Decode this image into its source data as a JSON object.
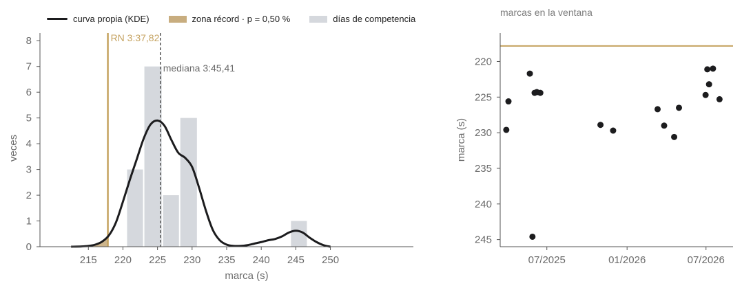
{
  "legend": {
    "kde": "curva propia (KDE)",
    "record_zone": "zona récord · p = 0,50 %",
    "competition_days": "días de competencia"
  },
  "colors": {
    "kde": "#1c1c1e",
    "record": "#c5a25f",
    "hist": "#d5d8dd",
    "median": "#555555",
    "points": "#1c1c1e"
  },
  "chart_data": [
    {
      "type": "bar",
      "subtype": "histogram_with_kde",
      "title": "",
      "xlabel": "marca (s)",
      "ylabel": "veces",
      "xlim": [
        208,
        262
      ],
      "ylim": [
        0,
        8.3
      ],
      "xticks": [
        215,
        220,
        225,
        230,
        235,
        240,
        245,
        250
      ],
      "yticks": [
        0,
        1,
        2,
        3,
        4,
        5,
        6,
        7,
        8
      ],
      "bins": [
        {
          "x0": 220.5,
          "x1": 223.0,
          "count": 3
        },
        {
          "x0": 223.0,
          "x1": 225.7,
          "count": 7
        },
        {
          "x0": 225.7,
          "x1": 228.2,
          "count": 2
        },
        {
          "x0": 228.2,
          "x1": 230.8,
          "count": 5
        },
        {
          "x0": 244.2,
          "x1": 246.7,
          "count": 1
        }
      ],
      "kde": {
        "name": "curva propia (KDE)",
        "x": [
          212.5,
          214,
          215,
          216,
          217,
          218,
          219,
          220,
          221,
          222,
          223,
          224,
          225,
          226,
          227,
          228,
          229,
          230,
          231,
          232,
          233,
          234,
          235,
          236,
          237,
          238,
          239,
          240,
          241,
          242,
          243,
          244,
          245,
          246,
          247,
          248,
          249,
          250
        ],
        "y": [
          0,
          0.01,
          0.03,
          0.08,
          0.2,
          0.45,
          0.95,
          1.75,
          2.6,
          3.4,
          4.2,
          4.75,
          4.9,
          4.7,
          4.15,
          3.65,
          3.45,
          3.1,
          2.3,
          1.4,
          0.65,
          0.25,
          0.08,
          0.03,
          0.03,
          0.06,
          0.12,
          0.18,
          0.25,
          0.3,
          0.4,
          0.55,
          0.62,
          0.55,
          0.35,
          0.18,
          0.06,
          0.0
        ]
      },
      "record": {
        "label": "RN 3:37,82",
        "value": 217.82,
        "zone_from": 217.0,
        "zone_name": "zona récord · p = 0,50 %"
      },
      "median": {
        "label": "mediana 3:45,41",
        "value": 225.41
      }
    },
    {
      "type": "scatter",
      "title": "marcas en la ventana",
      "xlabel": "",
      "ylabel": "marca (s)",
      "y_inverted": true,
      "ylim": [
        246,
        216
      ],
      "yticks": [
        220,
        225,
        230,
        235,
        240,
        245
      ],
      "xlim": [
        "2025-03-16",
        "2026-09-01"
      ],
      "xticks": [
        {
          "value": "2025-07-01",
          "label": "07/2025"
        },
        {
          "value": "2026-01-01",
          "label": "01/2026"
        },
        {
          "value": "2026-07-01",
          "label": "07/2026"
        }
      ],
      "record_line": 217.82,
      "points": [
        {
          "x": "2025-03-30",
          "y": 229.6
        },
        {
          "x": "2025-04-04",
          "y": 225.6
        },
        {
          "x": "2025-05-23",
          "y": 221.7
        },
        {
          "x": "2025-05-29",
          "y": 244.6
        },
        {
          "x": "2025-06-03",
          "y": 224.4
        },
        {
          "x": "2025-06-08",
          "y": 224.3
        },
        {
          "x": "2025-06-16",
          "y": 224.4
        },
        {
          "x": "2025-11-01",
          "y": 228.9
        },
        {
          "x": "2025-11-30",
          "y": 229.7
        },
        {
          "x": "2026-03-12",
          "y": 226.7
        },
        {
          "x": "2026-03-27",
          "y": 229.0
        },
        {
          "x": "2026-04-19",
          "y": 230.6
        },
        {
          "x": "2026-04-30",
          "y": 226.5
        },
        {
          "x": "2026-06-30",
          "y": 224.7
        },
        {
          "x": "2026-07-04",
          "y": 221.1
        },
        {
          "x": "2026-07-08",
          "y": 223.2
        },
        {
          "x": "2026-07-17",
          "y": 221.0
        },
        {
          "x": "2026-08-01",
          "y": 225.3
        }
      ]
    }
  ]
}
